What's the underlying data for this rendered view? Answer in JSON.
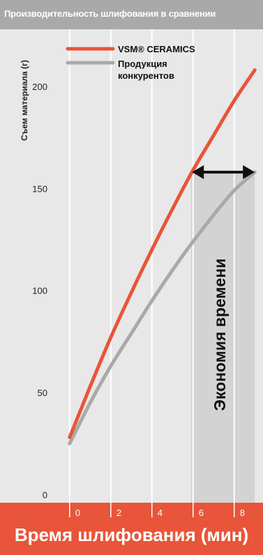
{
  "colors": {
    "background": "#e8e8e8",
    "title_bar": "#a9a9a9",
    "x_band": "#e8553a",
    "vsm_line": "#e8553a",
    "competitor_line": "#a9a9a9",
    "savings_band": "#d3d3d3",
    "arrow": "#111111",
    "grid": "#ffffff"
  },
  "icons": [
    "double-arrow-icon"
  ],
  "chart_data": {
    "type": "line",
    "title": "Производительность шлифования в сравнении",
    "xlabel": "Время шлифования (мин)",
    "ylabel": "Съем материала (г)",
    "x_ticks": [
      0,
      2,
      4,
      6,
      8
    ],
    "y_ticks": [
      0,
      50,
      100,
      150,
      200
    ],
    "xlim": [
      -0.3,
      9.4
    ],
    "ylim": [
      -4,
      228
    ],
    "grid": true,
    "legend_position": "top-left",
    "series": [
      {
        "name": "VSM® CERAMICS",
        "x": [
          0,
          1,
          2,
          3,
          4,
          5,
          6,
          7,
          8,
          9
        ],
        "y": [
          28,
          53,
          77,
          99,
          120,
          140,
          159,
          176,
          193,
          208
        ]
      },
      {
        "name": "Продукция конкурентов",
        "x": [
          0,
          1,
          2,
          3,
          4,
          5,
          6,
          7,
          8,
          9
        ],
        "y": [
          25,
          45,
          63,
          79,
          95,
          110,
          124,
          137,
          149,
          158
        ]
      }
    ],
    "annotation": {
      "text": "Экономия времени",
      "x_from": 5.9,
      "x_to": 9,
      "y": 158
    }
  }
}
